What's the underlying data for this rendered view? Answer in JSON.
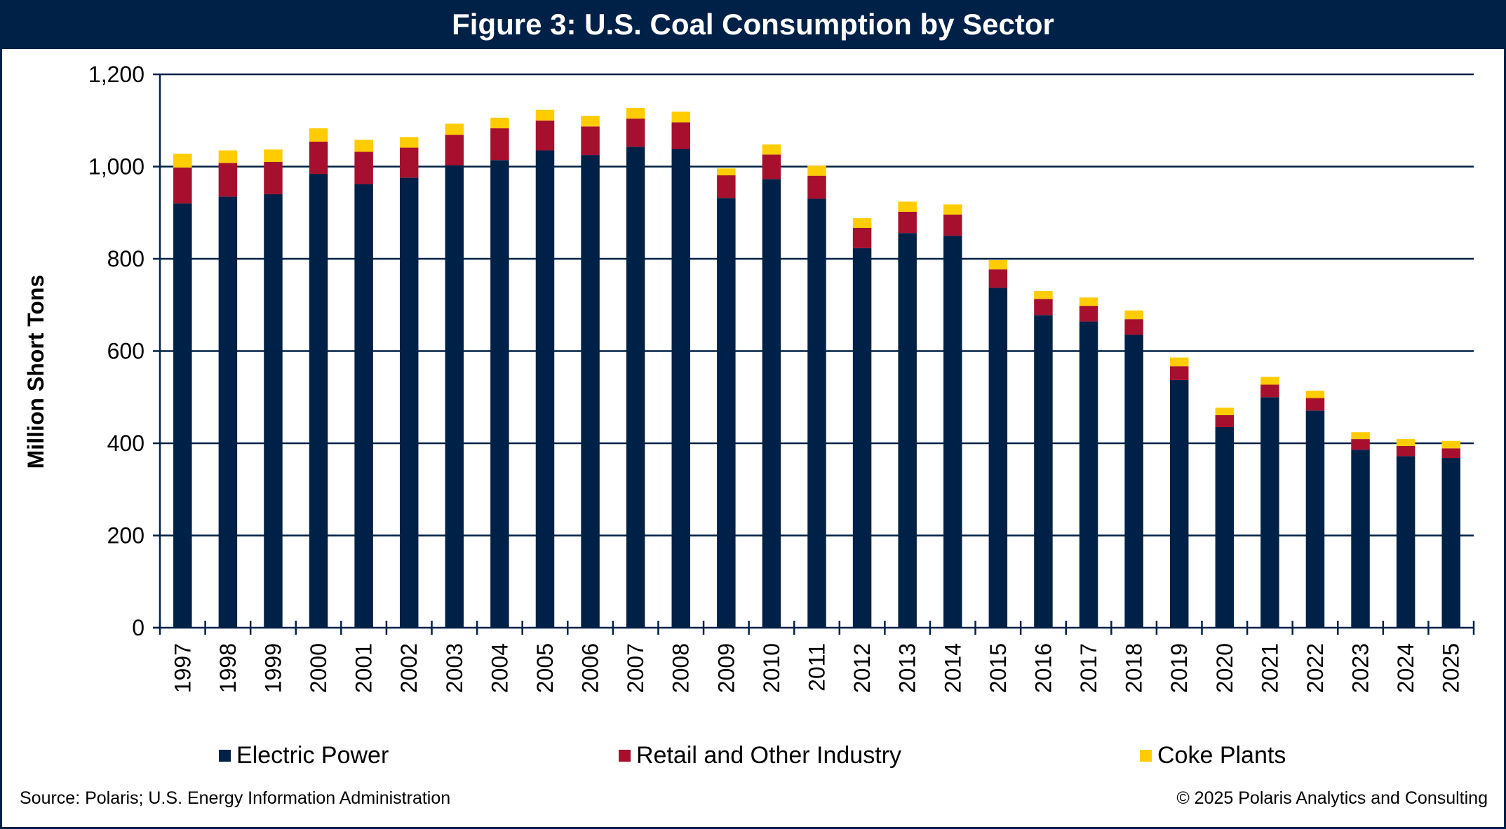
{
  "header": {
    "title": "Figure 3: U.S. Coal Consumption by Sector"
  },
  "footer": {
    "source": "Source: Polaris; U.S. Energy Information Administration",
    "copyright": "© 2025 Polaris Analytics and Consulting"
  },
  "colors": {
    "frame": "#002147",
    "electric_power": "#002147",
    "retail_industry": "#A6102E",
    "coke_plants": "#FFCC00",
    "grid": "#002147"
  },
  "chart_data": {
    "type": "bar",
    "stacked": true,
    "title": "Figure 3: U.S. Coal Consumption by Sector",
    "xlabel": "",
    "ylabel": "Million Short Tons",
    "ylim": [
      0,
      1200
    ],
    "yticks": [
      0,
      200,
      400,
      600,
      800,
      1000,
      1200
    ],
    "ytick_labels": [
      "0",
      "200",
      "400",
      "600",
      "800",
      "1,000",
      "1,200"
    ],
    "grid": true,
    "legend_position": "bottom",
    "categories": [
      "1997",
      "1998",
      "1999",
      "2000",
      "2001",
      "2002",
      "2003",
      "2004",
      "2005",
      "2006",
      "2007",
      "2008",
      "2009",
      "2010",
      "2011",
      "2012",
      "2013",
      "2014",
      "2015",
      "2016",
      "2017",
      "2018",
      "2019",
      "2020",
      "2021",
      "2022",
      "2023",
      "2024",
      "2025"
    ],
    "series": [
      {
        "name": "Electric Power",
        "color": "#002147",
        "values": [
          920,
          935,
          940,
          984,
          962,
          976,
          1003,
          1014,
          1035,
          1025,
          1043,
          1038,
          932,
          973,
          930,
          823,
          856,
          850,
          737,
          678,
          664,
          635,
          537,
          435,
          500,
          471,
          386,
          372,
          368
        ]
      },
      {
        "name": "Retail and Other Industry",
        "color": "#A6102E",
        "values": [
          78,
          73,
          70,
          70,
          70,
          65,
          66,
          69,
          65,
          62,
          61,
          58,
          49,
          53,
          50,
          44,
          46,
          46,
          40,
          35,
          34,
          34,
          30,
          26,
          27,
          27,
          23,
          22,
          21
        ]
      },
      {
        "name": "Coke Plants",
        "color": "#FFCC00",
        "values": [
          30,
          27,
          27,
          29,
          26,
          23,
          24,
          23,
          23,
          23,
          23,
          23,
          15,
          22,
          22,
          21,
          22,
          22,
          20,
          17,
          18,
          19,
          19,
          16,
          17,
          16,
          15,
          15,
          16
        ]
      }
    ]
  }
}
